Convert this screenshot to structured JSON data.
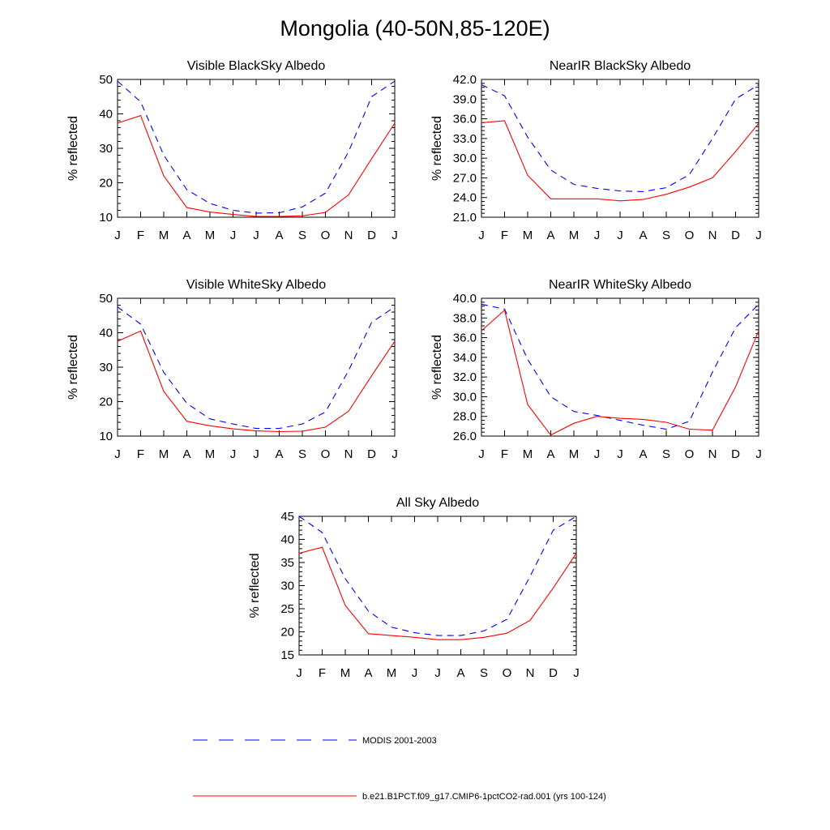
{
  "title": "Mongolia (40-50N,85-120E)",
  "legend": [
    {
      "name": "MODIS 2001-2003",
      "color": "#0000ff",
      "dash": true
    },
    {
      "name": "b.e21.B1PCT.f09_g17.CMIP6-1pctCO2-rad.001 (yrs 100-124)",
      "color": "#ff0000",
      "dash": false
    }
  ],
  "chart_data": [
    {
      "type": "line",
      "title": "Visible BlackSky Albedo",
      "ylabel": "% reflected",
      "categories": [
        "J",
        "F",
        "M",
        "A",
        "M",
        "J",
        "J",
        "A",
        "S",
        "O",
        "N",
        "D",
        "J"
      ],
      "ylim": [
        10,
        50
      ],
      "yticks": [
        "10",
        "20",
        "30",
        "40",
        "50"
      ],
      "series": [
        {
          "name": "MODIS 2001-2003",
          "values": [
            49.5,
            43.5,
            28,
            18,
            14,
            12,
            11.2,
            11.3,
            13,
            17,
            29,
            45,
            49.5
          ]
        },
        {
          "name": "b.e21.B1PCT.f09_g17.CMIP6-1pctCO2-rad.001 (yrs 100-124)",
          "values": [
            37.3,
            39.5,
            22,
            12.8,
            11.5,
            10.8,
            10.2,
            10.2,
            10.4,
            11.4,
            16.5,
            27,
            37.3
          ]
        }
      ]
    },
    {
      "type": "line",
      "title": "NearIR BlackSky Albedo",
      "ylabel": "% reflected",
      "categories": [
        "J",
        "F",
        "M",
        "A",
        "M",
        "J",
        "J",
        "A",
        "S",
        "O",
        "N",
        "D",
        "J"
      ],
      "ylim": [
        21,
        42
      ],
      "yticks": [
        "21.0",
        "24.0",
        "27.0",
        "30.0",
        "33.0",
        "36.0",
        "39.0",
        "42.0"
      ],
      "series": [
        {
          "name": "MODIS 2001-2003",
          "values": [
            41.2,
            39.5,
            33.2,
            28.2,
            26,
            25.4,
            25,
            24.9,
            25.5,
            27.5,
            33,
            39,
            41.2
          ]
        },
        {
          "name": "b.e21.B1PCT.f09_g17.CMIP6-1pctCO2-rad.001 (yrs 100-124)",
          "values": [
            35.4,
            35.7,
            27.4,
            23.8,
            23.8,
            23.8,
            23.5,
            23.7,
            24.5,
            25.6,
            27,
            31,
            35.3
          ]
        }
      ]
    },
    {
      "type": "line",
      "title": "Visible WhiteSky Albedo",
      "ylabel": "% reflected",
      "categories": [
        "J",
        "F",
        "M",
        "A",
        "M",
        "J",
        "J",
        "A",
        "S",
        "O",
        "N",
        "D",
        "J"
      ],
      "ylim": [
        10,
        50
      ],
      "yticks": [
        "10",
        "20",
        "30",
        "40",
        "50"
      ],
      "series": [
        {
          "name": "MODIS 2001-2003",
          "values": [
            47.5,
            42.5,
            28.5,
            19.5,
            15,
            13.5,
            12.2,
            12.2,
            13.5,
            17,
            29,
            43,
            47.5
          ]
        },
        {
          "name": "b.e21.B1PCT.f09_g17.CMIP6-1pctCO2-rad.001 (yrs 100-124)",
          "values": [
            37.5,
            40.5,
            23,
            14.3,
            13,
            12.1,
            11.5,
            11.3,
            11.4,
            12.6,
            17.2,
            27.5,
            37.5
          ]
        }
      ]
    },
    {
      "type": "line",
      "title": "NearIR WhiteSky Albedo",
      "ylabel": "% reflected",
      "categories": [
        "J",
        "F",
        "M",
        "A",
        "M",
        "J",
        "J",
        "A",
        "S",
        "O",
        "N",
        "D",
        "J"
      ],
      "ylim": [
        26,
        40
      ],
      "yticks": [
        "26.0",
        "28.0",
        "30.0",
        "32.0",
        "34.0",
        "36.0",
        "38.0",
        "40.0"
      ],
      "series": [
        {
          "name": "MODIS 2001-2003",
          "values": [
            39.4,
            38.9,
            33.8,
            30,
            28.5,
            28.1,
            27.6,
            27.1,
            26.7,
            27.5,
            32.5,
            37,
            39.4
          ]
        },
        {
          "name": "b.e21.B1PCT.f09_g17.CMIP6-1pctCO2-rad.001 (yrs 100-124)",
          "values": [
            36.7,
            38.8,
            29.2,
            26.1,
            27.3,
            28.0,
            27.8,
            27.7,
            27.4,
            26.7,
            26.6,
            31,
            36.7
          ]
        }
      ]
    },
    {
      "type": "line",
      "title": "All Sky Albedo",
      "ylabel": "% reflected",
      "categories": [
        "J",
        "F",
        "M",
        "A",
        "M",
        "J",
        "J",
        "A",
        "S",
        "O",
        "N",
        "D",
        "J"
      ],
      "ylim": [
        15,
        45
      ],
      "yticks": [
        "15",
        "20",
        "25",
        "30",
        "35",
        "40",
        "45"
      ],
      "series": [
        {
          "name": "MODIS 2001-2003",
          "values": [
            45,
            41.5,
            31.5,
            24.5,
            21,
            19.8,
            19.2,
            19.2,
            20.2,
            22.7,
            32,
            42,
            45
          ]
        },
        {
          "name": "b.e21.B1PCT.f09_g17.CMIP6-1pctCO2-rad.001 (yrs 100-124)",
          "values": [
            37,
            38.3,
            25.7,
            19.6,
            19.2,
            18.8,
            18.3,
            18.3,
            18.8,
            19.7,
            22.5,
            29.5,
            37
          ]
        }
      ]
    }
  ]
}
